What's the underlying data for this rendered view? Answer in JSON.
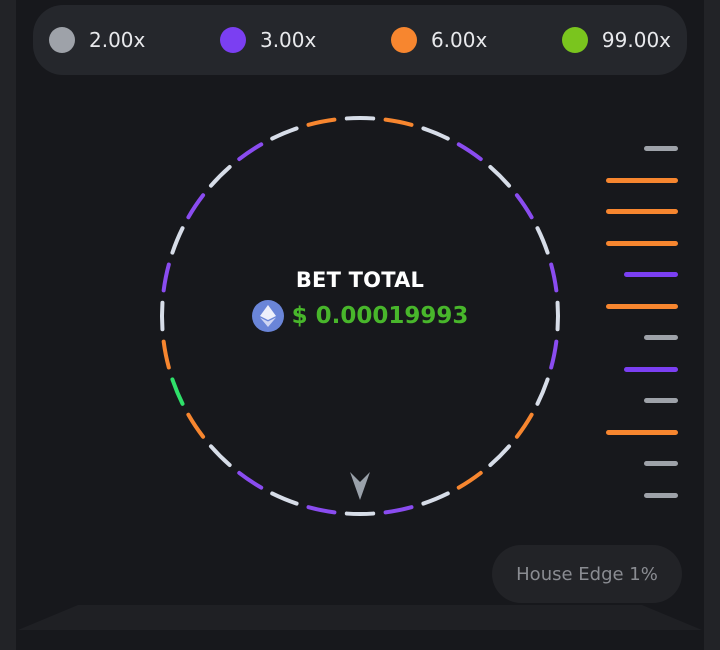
{
  "legend": [
    {
      "label": "2.00x",
      "color": "#9ea2a9"
    },
    {
      "label": "3.00x",
      "color": "#7b3ff2"
    },
    {
      "label": "6.00x",
      "color": "#f7862f"
    },
    {
      "label": "99.00x",
      "color": "#7ac51e"
    }
  ],
  "wheel": {
    "segments": [
      "w",
      "o",
      "w",
      "p",
      "w",
      "p",
      "w",
      "p",
      "w",
      "p",
      "w",
      "o",
      "w",
      "o",
      "w",
      "p",
      "w",
      "p",
      "w",
      "p",
      "w",
      "o",
      "g",
      "o",
      "w",
      "p",
      "w",
      "p",
      "w",
      "p",
      "w",
      "o"
    ],
    "segment_colors": {
      "w": "#d7dde8",
      "o": "#f7862f",
      "p": "#8a4cf0",
      "g": "#2fe06a"
    },
    "pointer_icon": "arrow-up-pointer"
  },
  "bet": {
    "title": "BET TOTAL",
    "currency_icon": "ethereum-icon",
    "amount": "$ 0.00019993"
  },
  "history": [
    "w",
    "o",
    "o",
    "o",
    "p",
    "o",
    "w",
    "p",
    "w",
    "o",
    "w",
    "w"
  ],
  "history_colors": {
    "w": "#9ea2a9",
    "o": "#f7862f",
    "p": "#7b3ff2"
  },
  "house_edge": "House Edge 1%"
}
